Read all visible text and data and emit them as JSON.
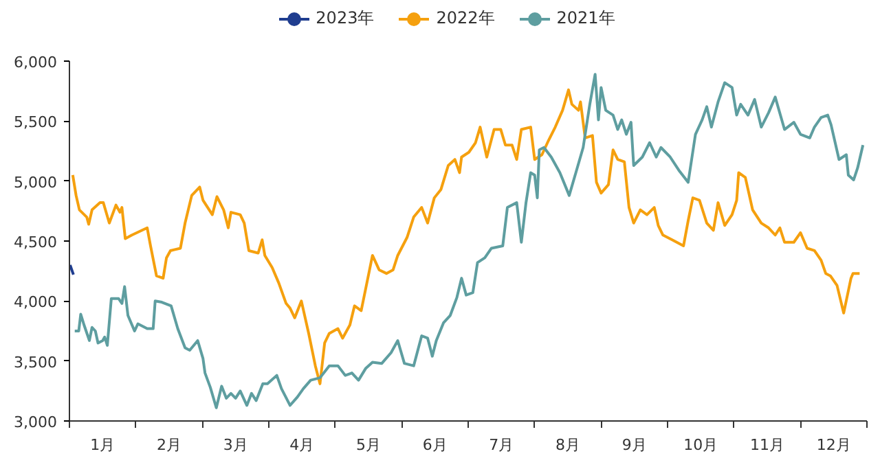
{
  "chart_data": {
    "type": "line",
    "xlim": [
      0,
      12
    ],
    "ylim": [
      3000,
      6000
    ],
    "xticks": [
      {
        "value": 0,
        "label": null
      },
      {
        "value": 0.5,
        "label": "1月"
      },
      {
        "value": 1,
        "label": null
      },
      {
        "value": 1.5,
        "label": "2月"
      },
      {
        "value": 2,
        "label": null
      },
      {
        "value": 2.5,
        "label": "3月"
      },
      {
        "value": 3,
        "label": null
      },
      {
        "value": 3.5,
        "label": "4月"
      },
      {
        "value": 4,
        "label": null
      },
      {
        "value": 4.5,
        "label": "5月"
      },
      {
        "value": 5,
        "label": null
      },
      {
        "value": 5.5,
        "label": "6月"
      },
      {
        "value": 6,
        "label": null
      },
      {
        "value": 6.5,
        "label": "7月"
      },
      {
        "value": 7,
        "label": null
      },
      {
        "value": 7.5,
        "label": "8月"
      },
      {
        "value": 8,
        "label": null
      },
      {
        "value": 8.5,
        "label": "9月"
      },
      {
        "value": 9,
        "label": null
      },
      {
        "value": 9.5,
        "label": "10月"
      },
      {
        "value": 10,
        "label": null
      },
      {
        "value": 10.5,
        "label": "11月"
      },
      {
        "value": 11,
        "label": null
      },
      {
        "value": 11.5,
        "label": "12月"
      },
      {
        "value": 12,
        "label": null
      }
    ],
    "yticks": [
      {
        "value": 3000,
        "label": "3,000"
      },
      {
        "value": 3500,
        "label": "3,500"
      },
      {
        "value": 4000,
        "label": "4,000"
      },
      {
        "value": 4500,
        "label": "4,500"
      },
      {
        "value": 5000,
        "label": "5,000"
      },
      {
        "value": 5500,
        "label": "5,500"
      },
      {
        "value": 6000,
        "label": "6,000"
      }
    ],
    "grid": false,
    "legend": "top",
    "series": [
      {
        "name": "2023年",
        "color": "#1f3d8f",
        "x": [
          0.01,
          0.06
        ],
        "values": [
          4300,
          4220
        ]
      },
      {
        "name": "2022年",
        "color": "#f5a00e",
        "x": [
          0.05,
          0.1,
          0.15,
          0.26,
          0.29,
          0.34,
          0.46,
          0.51,
          0.6,
          0.7,
          0.76,
          0.79,
          0.84,
          0.94,
          1.17,
          1.22,
          1.31,
          1.41,
          1.46,
          1.52,
          1.67,
          1.74,
          1.84,
          1.96,
          2.01,
          2.15,
          2.22,
          2.32,
          2.39,
          2.43,
          2.57,
          2.63,
          2.7,
          2.84,
          2.9,
          2.94,
          3.05,
          3.15,
          3.26,
          3.32,
          3.39,
          3.49,
          3.6,
          3.7,
          3.77,
          3.84,
          3.91,
          4.04,
          4.11,
          4.22,
          4.29,
          4.39,
          4.49,
          4.56,
          4.66,
          4.77,
          4.87,
          4.94,
          5.08,
          5.18,
          5.3,
          5.39,
          5.49,
          5.59,
          5.7,
          5.8,
          5.87,
          5.9,
          6.01,
          6.11,
          6.18,
          6.28,
          6.39,
          6.49,
          6.56,
          6.66,
          6.73,
          6.8,
          6.94,
          7.0,
          7.11,
          7.21,
          7.31,
          7.42,
          7.51,
          7.56,
          7.66,
          7.69,
          7.76,
          7.87,
          7.93,
          8.0,
          8.11,
          8.18,
          8.25,
          8.35,
          8.42,
          8.49,
          8.59,
          8.69,
          8.8,
          8.86,
          8.93,
          9.07,
          9.24,
          9.31,
          9.38,
          9.48,
          9.59,
          9.69,
          9.76,
          9.86,
          9.97,
          10.04,
          10.07,
          10.17,
          10.28,
          10.41,
          10.52,
          10.62,
          10.69,
          10.76,
          10.9,
          11.0,
          11.1,
          11.21,
          11.31,
          11.38,
          11.45,
          11.55,
          11.65,
          11.76,
          11.79,
          11.89
        ],
        "values": [
          5050,
          4880,
          4760,
          4700,
          4640,
          4760,
          4820,
          4820,
          4650,
          4800,
          4740,
          4780,
          4520,
          4550,
          4610,
          4460,
          4210,
          4190,
          4360,
          4420,
          4440,
          4650,
          4880,
          4950,
          4840,
          4720,
          4870,
          4760,
          4610,
          4740,
          4720,
          4650,
          4420,
          4400,
          4510,
          4380,
          4280,
          4150,
          3980,
          3940,
          3860,
          4000,
          3730,
          3460,
          3310,
          3650,
          3730,
          3770,
          3690,
          3800,
          3960,
          3920,
          4190,
          4380,
          4260,
          4230,
          4260,
          4380,
          4530,
          4700,
          4780,
          4650,
          4860,
          4930,
          5130,
          5180,
          5070,
          5200,
          5240,
          5320,
          5450,
          5200,
          5430,
          5430,
          5300,
          5300,
          5180,
          5430,
          5450,
          5180,
          5220,
          5340,
          5450,
          5590,
          5760,
          5640,
          5590,
          5660,
          5360,
          5380,
          4990,
          4900,
          4970,
          5260,
          5180,
          5160,
          4780,
          4650,
          4760,
          4720,
          4780,
          4630,
          4550,
          4510,
          4460,
          4670,
          4860,
          4840,
          4650,
          4590,
          4820,
          4630,
          4720,
          4840,
          5070,
          5030,
          4760,
          4650,
          4610,
          4550,
          4610,
          4490,
          4490,
          4570,
          4440,
          4420,
          4340,
          4230,
          4210,
          4130,
          3900,
          4190,
          4230,
          4230
        ]
      },
      {
        "name": "2021年",
        "color": "#5e9ea0",
        "x": [
          0.08,
          0.14,
          0.17,
          0.22,
          0.3,
          0.34,
          0.39,
          0.43,
          0.5,
          0.53,
          0.57,
          0.63,
          0.74,
          0.79,
          0.83,
          0.88,
          0.98,
          1.03,
          1.17,
          1.26,
          1.29,
          1.39,
          1.53,
          1.63,
          1.74,
          1.81,
          1.93,
          2.01,
          2.04,
          2.12,
          2.21,
          2.29,
          2.36,
          2.43,
          2.5,
          2.57,
          2.67,
          2.74,
          2.81,
          2.91,
          2.98,
          3.12,
          3.19,
          3.32,
          3.43,
          3.52,
          3.63,
          3.77,
          3.91,
          4.04,
          4.15,
          4.25,
          4.35,
          4.46,
          4.56,
          4.7,
          4.84,
          4.94,
          5.04,
          5.18,
          5.3,
          5.39,
          5.46,
          5.52,
          5.63,
          5.73,
          5.83,
          5.9,
          5.97,
          6.07,
          6.14,
          6.25,
          6.35,
          6.52,
          6.59,
          6.73,
          6.8,
          6.87,
          6.94,
          7.0,
          7.04,
          7.07,
          7.14,
          7.25,
          7.38,
          7.52,
          7.62,
          7.73,
          7.83,
          7.91,
          7.96,
          8.0,
          8.07,
          8.18,
          8.25,
          8.31,
          8.38,
          8.45,
          8.49,
          8.62,
          8.73,
          8.83,
          8.9,
          9.04,
          9.17,
          9.31,
          9.42,
          9.52,
          9.59,
          9.66,
          9.76,
          9.86,
          9.97,
          10.04,
          10.1,
          10.21,
          10.31,
          10.41,
          10.52,
          10.62,
          10.76,
          10.9,
          11.0,
          11.14,
          11.21,
          11.31,
          11.41,
          11.46,
          11.58,
          11.69,
          11.72,
          11.8,
          11.86,
          11.94
        ],
        "values": [
          3750,
          3750,
          3890,
          3800,
          3670,
          3780,
          3750,
          3650,
          3670,
          3700,
          3630,
          4020,
          4020,
          3980,
          4120,
          3880,
          3750,
          3810,
          3770,
          3770,
          4000,
          3990,
          3960,
          3770,
          3610,
          3590,
          3670,
          3520,
          3400,
          3280,
          3110,
          3290,
          3190,
          3230,
          3190,
          3250,
          3130,
          3230,
          3170,
          3310,
          3310,
          3380,
          3270,
          3130,
          3200,
          3270,
          3340,
          3360,
          3460,
          3460,
          3380,
          3400,
          3340,
          3440,
          3490,
          3480,
          3570,
          3670,
          3480,
          3460,
          3710,
          3690,
          3540,
          3670,
          3820,
          3880,
          4030,
          4190,
          4050,
          4070,
          4320,
          4360,
          4440,
          4460,
          4780,
          4820,
          4490,
          4820,
          5070,
          5050,
          4860,
          5260,
          5280,
          5200,
          5070,
          4880,
          5070,
          5280,
          5640,
          5890,
          5510,
          5780,
          5590,
          5550,
          5430,
          5510,
          5390,
          5490,
          5130,
          5200,
          5320,
          5200,
          5280,
          5200,
          5090,
          4990,
          5390,
          5510,
          5620,
          5450,
          5660,
          5820,
          5780,
          5550,
          5640,
          5550,
          5680,
          5450,
          5570,
          5700,
          5430,
          5490,
          5390,
          5360,
          5450,
          5530,
          5550,
          5470,
          5180,
          5220,
          5050,
          5010,
          5110,
          5300
        ]
      }
    ]
  }
}
